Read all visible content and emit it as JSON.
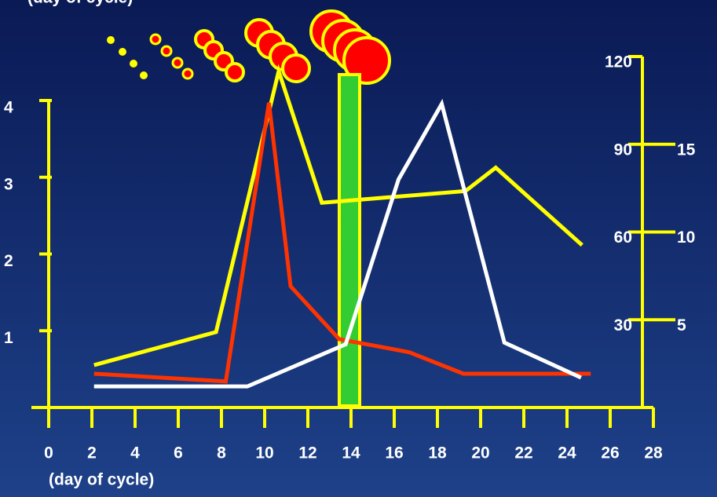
{
  "chart_data": {
    "type": "line",
    "y_label": "(day of cycle)",
    "x_label": "(day of cycle)",
    "xlim": [
      0,
      28
    ],
    "xticks": [
      0,
      2,
      4,
      6,
      8,
      10,
      12,
      14,
      16,
      18,
      20,
      22,
      24,
      26,
      28
    ],
    "ylim": [
      0,
      4
    ],
    "yticks": [
      1,
      2,
      3,
      4
    ],
    "y2lim": [
      0,
      120
    ],
    "y2ticks": [
      30,
      60,
      90,
      120
    ],
    "y3lim": [
      0,
      20
    ],
    "y3ticks": [
      5,
      10,
      15
    ],
    "series": [
      {
        "color": "#ffff00",
        "axis": "y2",
        "x": [
          2.1,
          7.75,
          10.65,
          12.65,
          19.3,
          20.7,
          24.7
        ],
        "values": [
          14.5,
          25.8,
          115,
          70,
          74,
          82,
          55.5
        ]
      },
      {
        "color": "#ff3300",
        "axis": "y",
        "x": [
          2.1,
          8.2,
          10.2,
          11.2,
          13.45,
          16.7,
          19.2,
          25.1
        ],
        "values": [
          0.44,
          0.34,
          3.97,
          1.58,
          0.89,
          0.72,
          0.44,
          0.44
        ]
      },
      {
        "color": "#ffffff",
        "axis": "y3",
        "x": [
          2.1,
          9.2,
          13.75,
          16.2,
          18.2,
          21.1,
          24.65
        ],
        "values": [
          1.2,
          1.2,
          3.6,
          13.0,
          17.3,
          3.7,
          1.7
        ]
      }
    ]
  }
}
